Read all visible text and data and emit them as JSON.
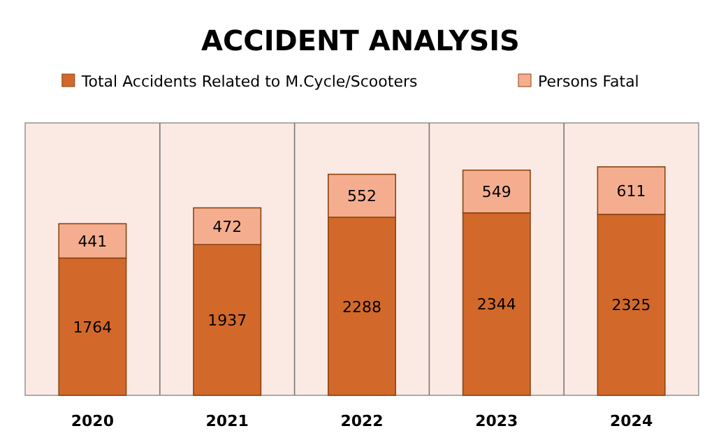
{
  "chart_data": {
    "type": "bar",
    "title": "ACCIDENT ANALYSIS",
    "categories": [
      "2020",
      "2021",
      "2022",
      "2023",
      "2024"
    ],
    "series": [
      {
        "name": "Total Accidents Related to M.Cycle/Scooters",
        "color": "#d2692a",
        "values": [
          1764,
          1937,
          2288,
          2344,
          2325
        ]
      },
      {
        "name": "Persons Fatal",
        "color": "#f4ae8f",
        "values": [
          441,
          472,
          552,
          549,
          611
        ]
      }
    ],
    "stacked": true,
    "data_labels": true,
    "ylim": [
      0,
      3500
    ],
    "tick_labels": "x",
    "grid": "x",
    "legend": "top"
  }
}
